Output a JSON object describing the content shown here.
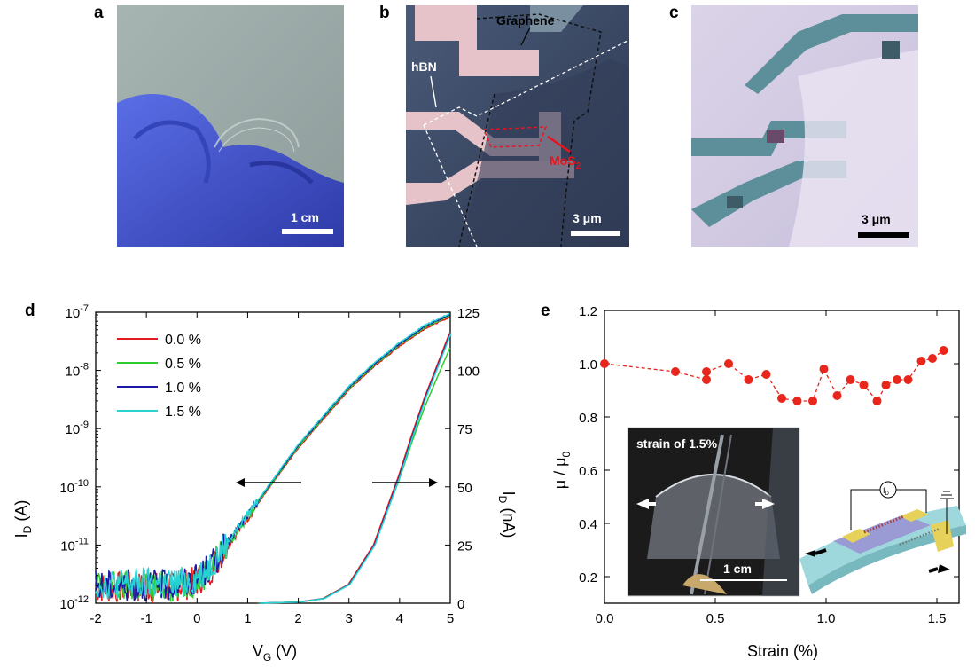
{
  "panels": {
    "a": {
      "letter": "a",
      "scale_label": "1 cm"
    },
    "b": {
      "letter": "b",
      "label_graphene": "Graphene",
      "label_hbn": "hBN",
      "label_mos2": "MoS",
      "label_mos2_sub": "2",
      "scale_label": "3 μm"
    },
    "c": {
      "letter": "c",
      "scale_label": "3 μm"
    },
    "d": {
      "letter": "d"
    },
    "e": {
      "letter": "e",
      "inset_title": "strain of 1.5%",
      "inset_scale": "1 cm",
      "schematic_label": "I",
      "schematic_label_sub": "D"
    }
  },
  "colors": {
    "red": "#e41a1c",
    "green": "#2ecc2e",
    "blue": "#1a1aa6",
    "cyan": "#27d3d3",
    "dot_red": "#e8261c"
  },
  "chart_data": [
    {
      "type": "line",
      "panel": "d",
      "xlabel": "V",
      "xlabel_sub": "G",
      "xlabel_unit": " (V)",
      "ylabel_left": "I",
      "ylabel_left_sub": "D",
      "ylabel_left_unit": " (A)",
      "ylabel_right": "I",
      "ylabel_right_sub": "D",
      "ylabel_right_unit": " (nA)",
      "x_ticks": [
        "-2",
        "-1",
        "0",
        "1",
        "2",
        "3",
        "4",
        "5"
      ],
      "xlim": [
        -2,
        5
      ],
      "y_left_scale": "log",
      "y_left_lim_exp": [
        -12,
        -7
      ],
      "y_left_ticks": [
        {
          "base": "10",
          "exp": "-12"
        },
        {
          "base": "10",
          "exp": "-11"
        },
        {
          "base": "10",
          "exp": "-10"
        },
        {
          "base": "10",
          "exp": "-9"
        },
        {
          "base": "10",
          "exp": "-8"
        },
        {
          "base": "10",
          "exp": "-7"
        }
      ],
      "y_right_lim": [
        0,
        125
      ],
      "y_right_ticks": [
        "0",
        "25",
        "50",
        "75",
        "100",
        "125"
      ],
      "legend": [
        {
          "name": "0.0 %",
          "color": "#e41a1c"
        },
        {
          "name": "0.5 %",
          "color": "#2ecc2e"
        },
        {
          "name": "1.0 %",
          "color": "#1a1aa6"
        },
        {
          "name": "1.5 %",
          "color": "#27d3d3"
        }
      ],
      "legend_position": "top-left",
      "log_curve": {
        "x": [
          -2,
          -1.5,
          -1,
          -0.5,
          0,
          0.25,
          0.5,
          1,
          1.5,
          2,
          2.5,
          3,
          3.5,
          4,
          4.5,
          5
        ],
        "log10_y": [
          -11.7,
          -11.7,
          -11.7,
          -11.7,
          -11.6,
          -11.4,
          -11.1,
          -10.5,
          -9.9,
          -9.3,
          -8.8,
          -8.3,
          -7.9,
          -7.55,
          -7.25,
          -7.05
        ]
      },
      "linear_curve": {
        "x": [
          1.2,
          2,
          2.5,
          3,
          3.5,
          4,
          4.25,
          4.5,
          4.75,
          5
        ],
        "y_nA": [
          0,
          0.5,
          2,
          8,
          25,
          55,
          72,
          88,
          102,
          116
        ]
      }
    },
    {
      "type": "scatter",
      "panel": "e",
      "xlabel": "Strain (%)",
      "ylabel": "μ / μ",
      "ylabel_sub": "0",
      "xlim": [
        0,
        1.6
      ],
      "ylim": [
        0.1,
        1.2
      ],
      "x_ticks": [
        "0.0",
        "0.5",
        "1.0",
        "1.5"
      ],
      "y_ticks": [
        "0.2",
        "0.4",
        "0.6",
        "0.8",
        "1.0",
        "1.2"
      ],
      "x": [
        0.0,
        0.32,
        0.46,
        0.46,
        0.56,
        0.65,
        0.73,
        0.8,
        0.87,
        0.94,
        0.99,
        1.05,
        1.11,
        1.17,
        1.23,
        1.27,
        1.32,
        1.37,
        1.43,
        1.48,
        1.53
      ],
      "y": [
        1.0,
        0.97,
        0.94,
        0.97,
        1.0,
        0.94,
        0.96,
        0.87,
        0.86,
        0.86,
        0.98,
        0.88,
        0.94,
        0.92,
        0.86,
        0.92,
        0.94,
        0.94,
        1.01,
        1.02,
        1.05
      ]
    }
  ]
}
